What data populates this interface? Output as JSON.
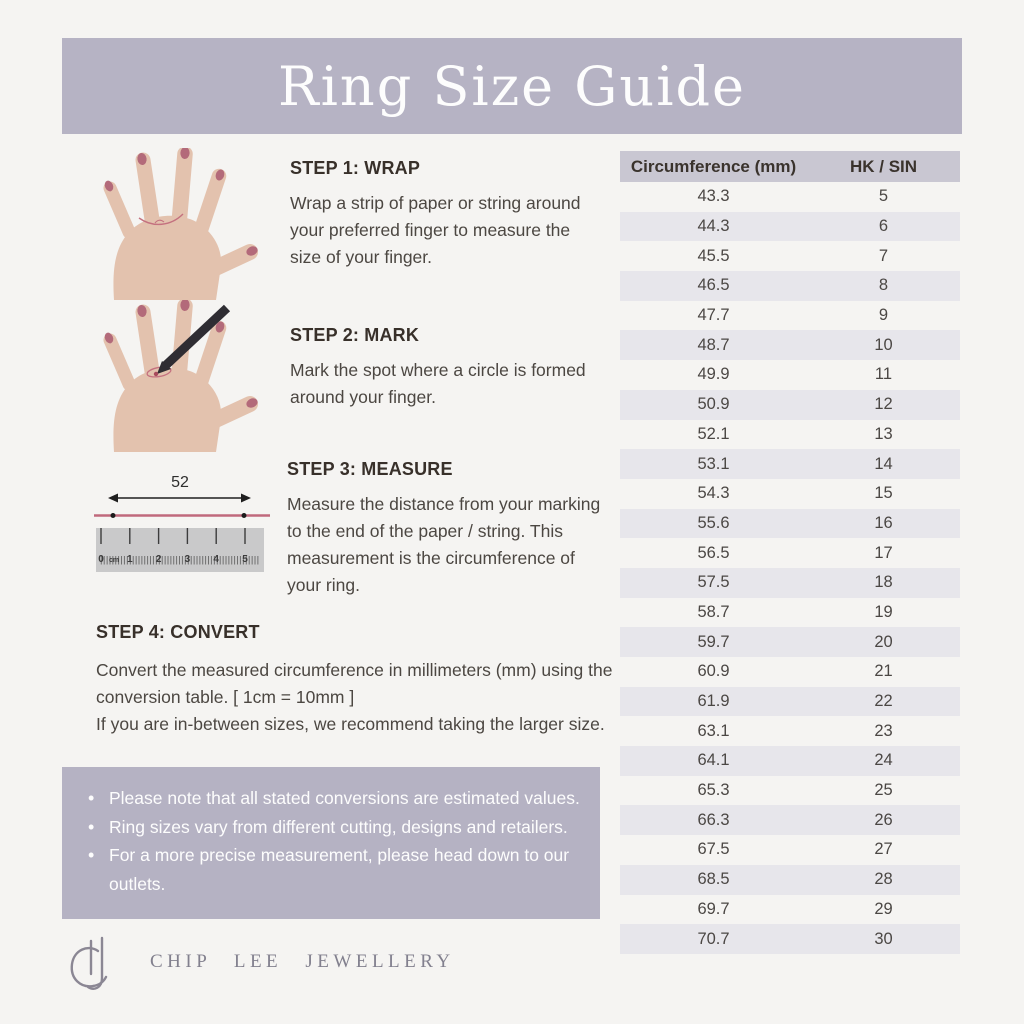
{
  "header": {
    "title": "Ring Size Guide"
  },
  "steps": [
    {
      "title": "STEP 1: WRAP",
      "description": "Wrap a strip of paper or string around your preferred finger to measure the size of your finger."
    },
    {
      "title": "STEP 2: MARK",
      "description": "Mark the spot where a circle is formed around your finger."
    },
    {
      "title": "STEP 3: MEASURE",
      "description": "Measure the distance from your marking to the end of the paper / string. This measurement is the circumference of your ring."
    },
    {
      "title": "STEP 4: CONVERT",
      "description": "Convert the measured circumference in millimeters (mm) using the conversion table. [ 1cm = 10mm ]",
      "description2": "If you are in-between sizes, we recommend taking the larger size."
    }
  ],
  "measure_diagram": {
    "measurement": "52",
    "ruler_labels": [
      "0",
      "cm",
      "1",
      "2",
      "3",
      "4",
      "5"
    ]
  },
  "notes": {
    "items": [
      "Please note that all stated conversions are estimated values.",
      "Ring sizes vary from different cutting, designs and retailers.",
      "For a more precise measurement, please head down to our outlets."
    ]
  },
  "conversion_table": {
    "columns": [
      "Circumference (mm)",
      "HK / SIN"
    ],
    "rows": [
      [
        "43.3",
        "5"
      ],
      [
        "44.3",
        "6"
      ],
      [
        "45.5",
        "7"
      ],
      [
        "46.5",
        "8"
      ],
      [
        "47.7",
        "9"
      ],
      [
        "48.7",
        "10"
      ],
      [
        "49.9",
        "11"
      ],
      [
        "50.9",
        "12"
      ],
      [
        "52.1",
        "13"
      ],
      [
        "53.1",
        "14"
      ],
      [
        "54.3",
        "15"
      ],
      [
        "55.6",
        "16"
      ],
      [
        "56.5",
        "17"
      ],
      [
        "57.5",
        "18"
      ],
      [
        "58.7",
        "19"
      ],
      [
        "59.7",
        "20"
      ],
      [
        "60.9",
        "21"
      ],
      [
        "61.9",
        "22"
      ],
      [
        "63.1",
        "23"
      ],
      [
        "64.1",
        "24"
      ],
      [
        "65.3",
        "25"
      ],
      [
        "66.3",
        "26"
      ],
      [
        "67.5",
        "27"
      ],
      [
        "68.5",
        "28"
      ],
      [
        "69.7",
        "29"
      ],
      [
        "70.7",
        "30"
      ]
    ]
  },
  "footer": {
    "brand": "CHIP LEE JEWELLERY"
  },
  "colors": {
    "background": "#f5f4f2",
    "banner_bg": "#b6b3c4",
    "notes_bg": "#b5b2c3",
    "table_header_bg": "#c9c7d2",
    "table_row_alt": "#e7e6eb",
    "heading_text": "#38302a",
    "body_text": "#4c4742",
    "notes_text": "#fdfdfd",
    "brand_text": "#82808e",
    "skin": "#e3c2ae",
    "nail": "#b36a7a",
    "string_pink": "#c0697c",
    "pen_dark": "#2f2d33"
  }
}
